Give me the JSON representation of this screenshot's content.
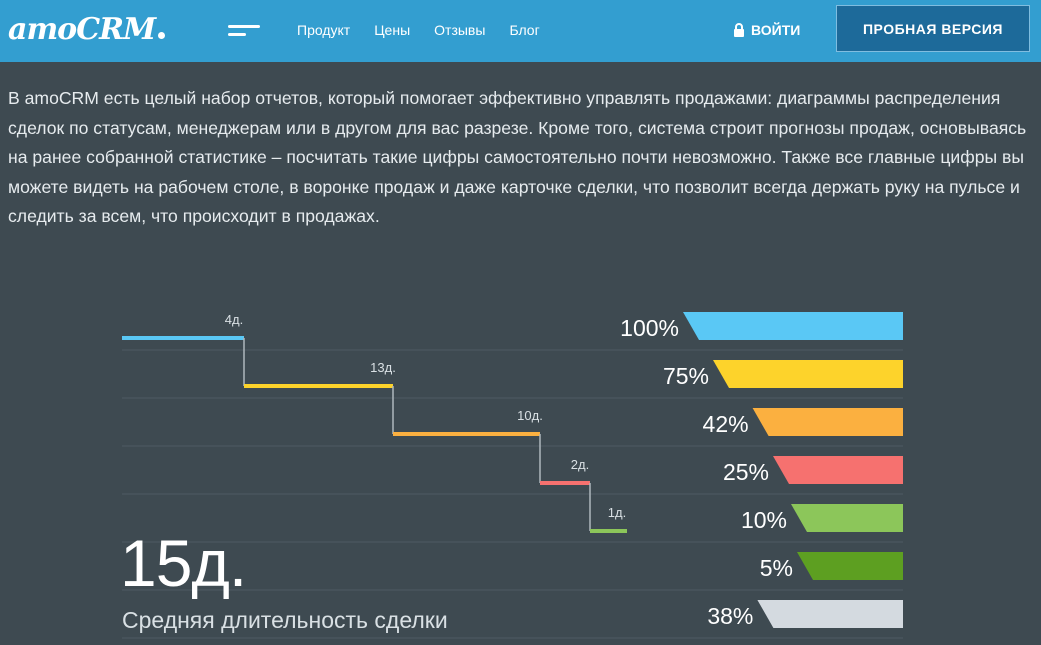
{
  "header": {
    "logo_text": "amoCRM",
    "nav": [
      "Продукт",
      "Цены",
      "Отзывы",
      "Блог"
    ],
    "login_label": "ВОЙТИ",
    "trial_label": "ПРОБНАЯ ВЕРСИЯ"
  },
  "intro_text": "В amoCRM есть целый набор отчетов, который помогает эффективно управлять продажами: диаграммы распределения сделок по статусам, менеджерам или в другом для вас разрезе. Кроме того, система строит прогнозы продаж, основываясь на ранее собранной статистике – посчитать такие цифры самостоятельно почти невозможно. Также все главные цифры вы можете видеть на рабочем столе, в воронке продаж и даже карточке сделки, что позволит всегда держать руку на пульсе и следить за всем, что происходит в продажах.",
  "summary": {
    "value": "15д.",
    "caption": "Средняя длительность сделки"
  },
  "colors": {
    "header": "#339ed0",
    "background": "#3e4a51",
    "trial_button": "#1d6a9a"
  },
  "chart_data": {
    "type": "bar",
    "stages": [
      {
        "duration": "4д.",
        "percent": "100%",
        "value": 100,
        "color": "#5ac8f5"
      },
      {
        "duration": "13д.",
        "percent": "75%",
        "value": 75,
        "color": "#fdd32b"
      },
      {
        "duration": "10д.",
        "percent": "42%",
        "value": 42,
        "color": "#fbb040"
      },
      {
        "duration": "2д.",
        "percent": "25%",
        "value": 25,
        "color": "#f6716f"
      },
      {
        "duration": "1д.",
        "percent": "10%",
        "value": 10,
        "color": "#8cc65a"
      },
      {
        "duration": "",
        "percent": "5%",
        "value": 5,
        "color": "#5d9f21"
      },
      {
        "duration": "",
        "percent": "38%",
        "value": 38,
        "color": "#d4dae0"
      }
    ]
  }
}
